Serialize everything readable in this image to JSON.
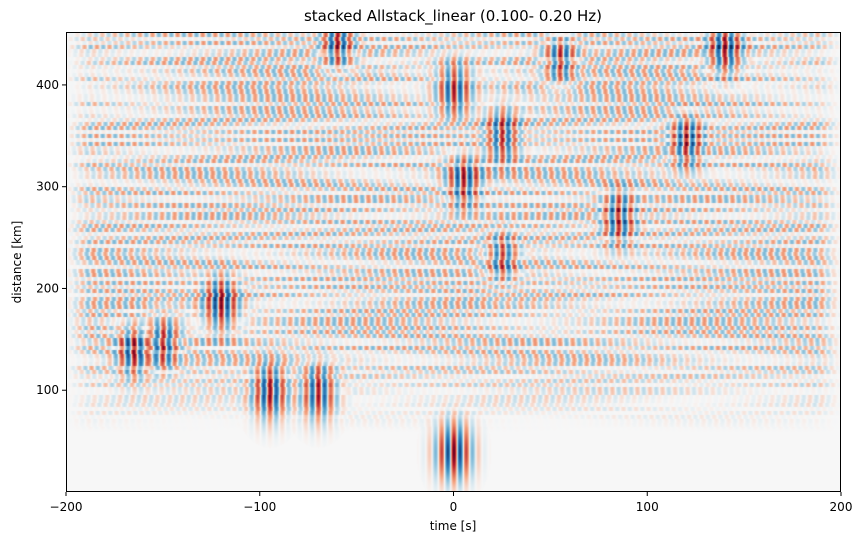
{
  "chart_data": {
    "type": "heatmap",
    "title": "stacked Allstack_linear (0.100- 0.20 Hz)",
    "xlabel": "time [s]",
    "ylabel": "distance [km]",
    "xlim": [
      -200,
      200
    ],
    "ylim": [
      0,
      452
    ],
    "x_ticks": [
      -200,
      -100,
      0,
      100,
      200
    ],
    "x_tick_labels": [
      "−200",
      "−100",
      "0",
      "100",
      "200"
    ],
    "y_ticks": [
      100,
      200,
      300,
      400
    ],
    "y_tick_labels": [
      "100",
      "200",
      "300",
      "400"
    ],
    "grid": false,
    "colormap": "RdBu (diverging, red positive, blue negative, white zero)",
    "colors": {
      "positive": "#b2182b",
      "zero": "#f7f7f7",
      "negative": "#053061"
    },
    "value_range": [
      -1,
      1
    ],
    "notable_arrivals": [
      {
        "time_s": 0,
        "distance_km": 40,
        "amplitude": 1.0
      },
      {
        "time_s": -95,
        "distance_km": 100,
        "amplitude": 0.9
      },
      {
        "time_s": -70,
        "distance_km": 100,
        "amplitude": 0.9
      },
      {
        "time_s": -120,
        "distance_km": 185,
        "amplitude": 0.9
      },
      {
        "time_s": -165,
        "distance_km": 140,
        "amplitude": 0.8
      },
      {
        "time_s": -150,
        "distance_km": 145,
        "amplitude": 0.9
      },
      {
        "time_s": 25,
        "distance_km": 230,
        "amplitude": 0.8
      },
      {
        "time_s": 5,
        "distance_km": 305,
        "amplitude": 0.8
      },
      {
        "time_s": 85,
        "distance_km": 270,
        "amplitude": 0.8
      },
      {
        "time_s": 120,
        "distance_km": 345,
        "amplitude": 0.9
      },
      {
        "time_s": 25,
        "distance_km": 350,
        "amplitude": 0.8
      },
      {
        "time_s": 0,
        "distance_km": 395,
        "amplitude": 0.8
      },
      {
        "time_s": -60,
        "distance_km": 440,
        "amplitude": 0.9
      },
      {
        "time_s": 140,
        "distance_km": 435,
        "amplitude": 0.9
      },
      {
        "time_s": 55,
        "distance_km": 425,
        "amplitude": 0.8
      }
    ]
  }
}
